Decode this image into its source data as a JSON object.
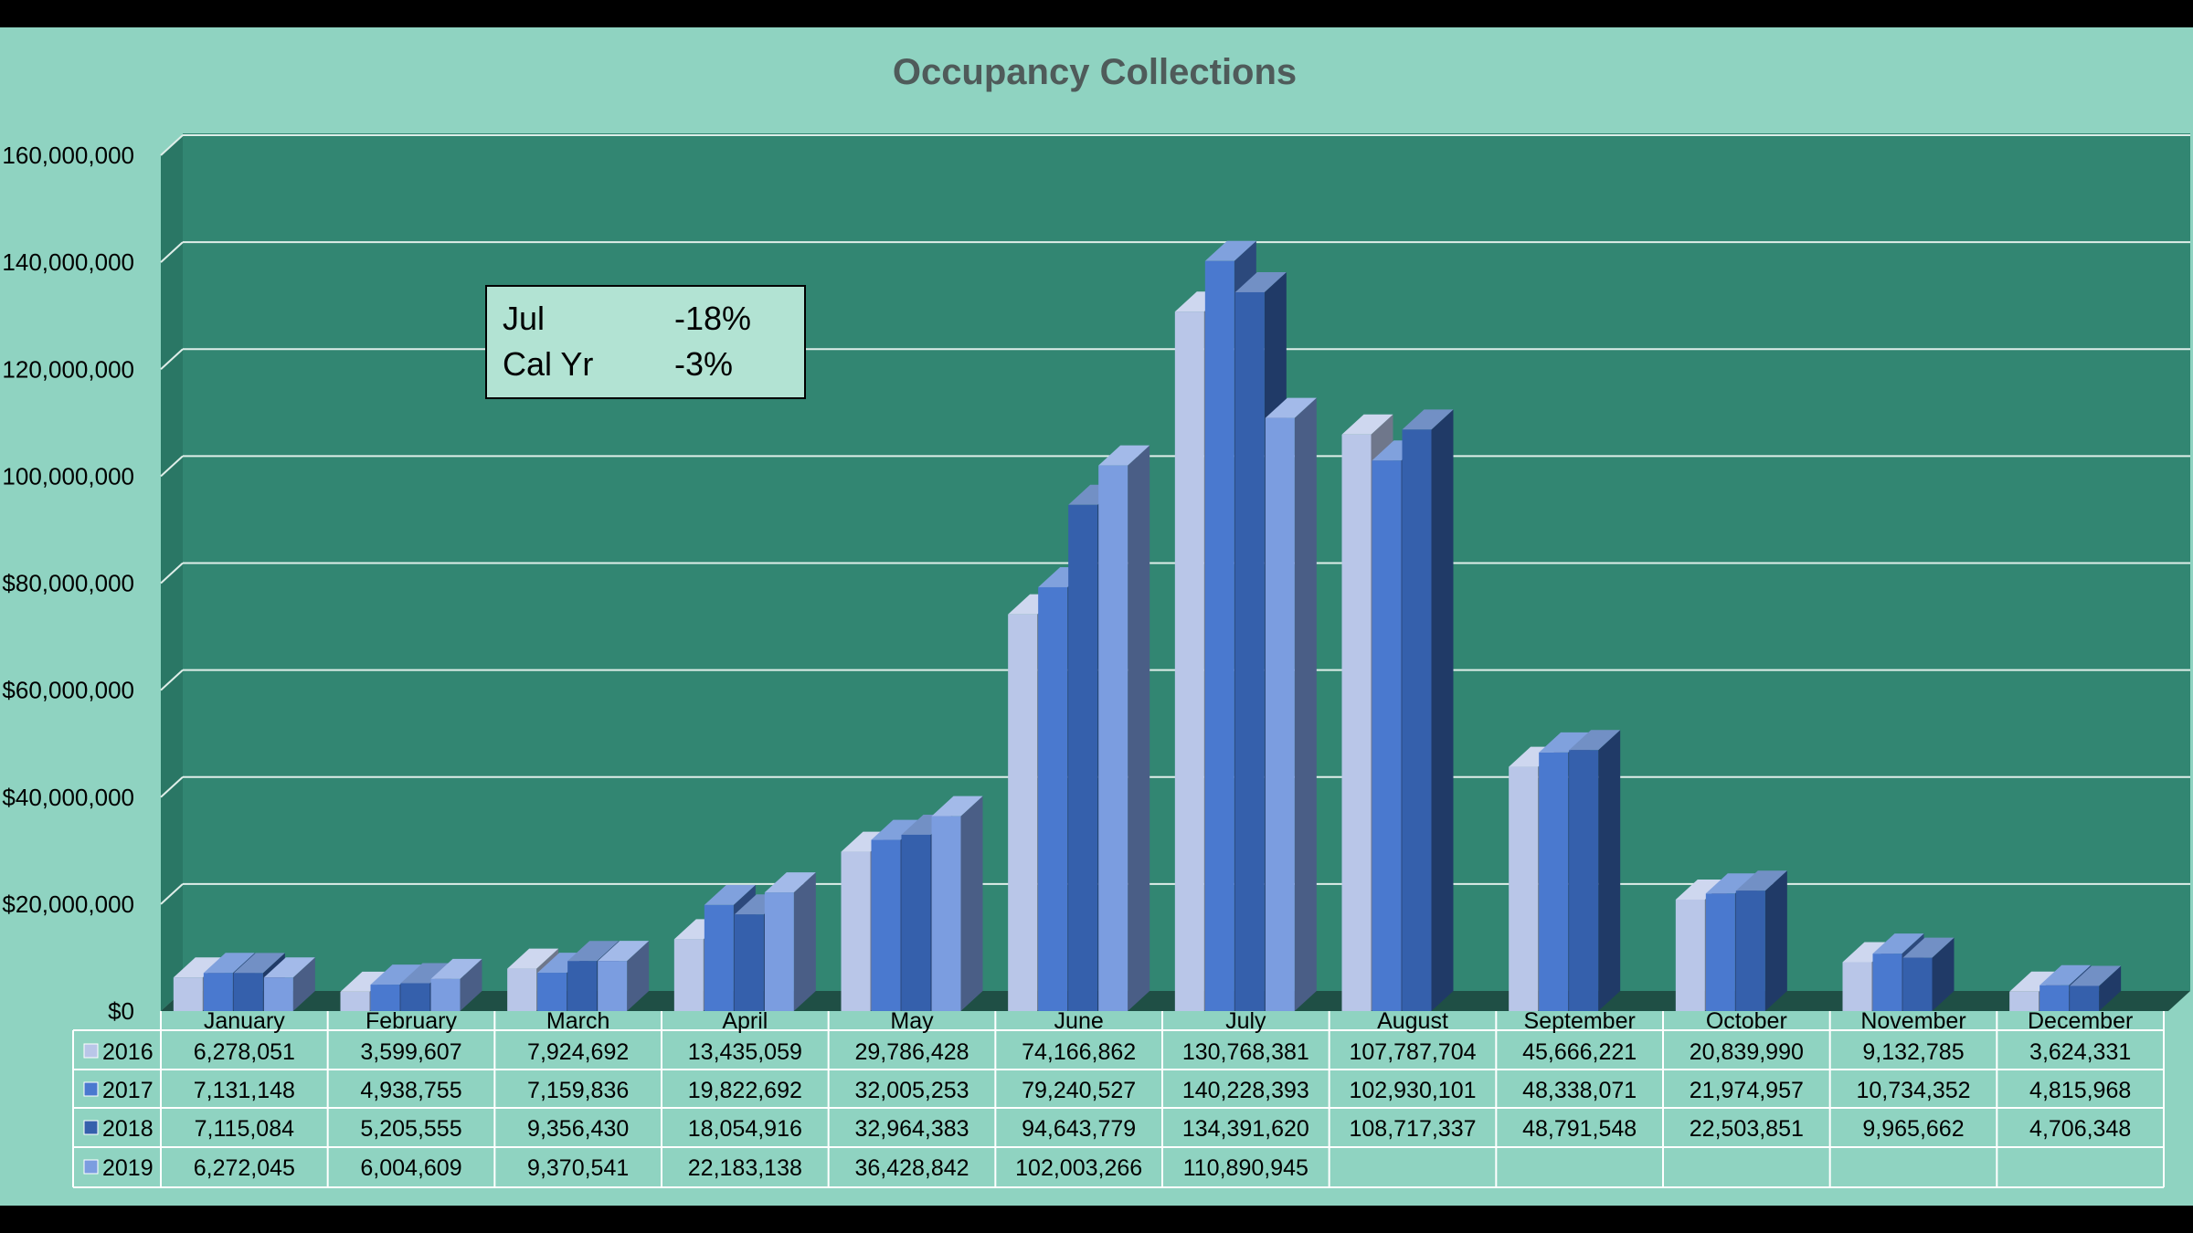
{
  "chart_data": {
    "type": "bar",
    "title": "Occupancy Collections",
    "xlabel": "",
    "ylabel": "",
    "ylim": [
      0,
      160000000
    ],
    "y_tick_values": [
      0,
      20000000,
      40000000,
      60000000,
      80000000,
      100000000,
      120000000,
      140000000,
      160000000
    ],
    "y_tick_labels": [
      "$0",
      "$20,000,000",
      "$40,000,000",
      "$60,000,000",
      "$80,000,000",
      "100,000,000",
      "120,000,000",
      "140,000,000",
      "160,000,000"
    ],
    "categories": [
      "January",
      "February",
      "March",
      "April",
      "May",
      "June",
      "July",
      "August",
      "September",
      "October",
      "November",
      "December"
    ],
    "series": [
      {
        "name": "2016",
        "color": "#b9c6e8",
        "values": [
          6278051,
          3599607,
          7924692,
          13435059,
          29786428,
          74166862,
          130768381,
          107787704,
          45666221,
          20839990,
          9132785,
          3624331
        ],
        "labels": [
          "6,278,051",
          "3,599,607",
          "7,924,692",
          "13,435,059",
          "29,786,428",
          "74,166,862",
          "130,768,381",
          "107,787,704",
          "45,666,221",
          "20,839,990",
          "9,132,785",
          "3,624,331"
        ]
      },
      {
        "name": "2017",
        "color": "#4a79cf",
        "values": [
          7131148,
          4938755,
          7159836,
          19822692,
          32005253,
          79240527,
          140228393,
          102930101,
          48338071,
          21974957,
          10734352,
          4815968
        ],
        "labels": [
          "7,131,148",
          "4,938,755",
          "7,159,836",
          "19,822,692",
          "32,005,253",
          "79,240,527",
          "140,228,393",
          "102,930,101",
          "48,338,071",
          "21,974,957",
          "10,734,352",
          "4,815,968"
        ]
      },
      {
        "name": "2018",
        "color": "#3560ac",
        "values": [
          7115084,
          5205555,
          9356430,
          18054916,
          32964383,
          94643779,
          134391620,
          108717337,
          48791548,
          22503851,
          9965662,
          4706348
        ],
        "labels": [
          "7,115,084",
          "5,205,555",
          "9,356,430",
          "18,054,916",
          "32,964,383",
          "94,643,779",
          "134,391,620",
          "108,717,337",
          "48,791,548",
          "22,503,851",
          "9,965,662",
          "4,706,348"
        ]
      },
      {
        "name": "2019",
        "color": "#7b9de0",
        "values": [
          6272045,
          6004609,
          9370541,
          22183138,
          36428842,
          102003266,
          110890945,
          null,
          null,
          null,
          null,
          null
        ],
        "labels": [
          "6,272,045",
          "6,004,609",
          "9,370,541",
          "22,183,138",
          "36,428,842",
          "102,003,266",
          "110,890,945",
          "",
          "",
          "",
          "",
          ""
        ]
      }
    ],
    "annotations": [
      {
        "label": "Jul",
        "value": "-18%"
      },
      {
        "label": "Cal Yr",
        "value": "-3%"
      }
    ],
    "grid": true,
    "legend": "data-table-below",
    "plot_bg": "#328672",
    "background": "#8fd3c1"
  }
}
